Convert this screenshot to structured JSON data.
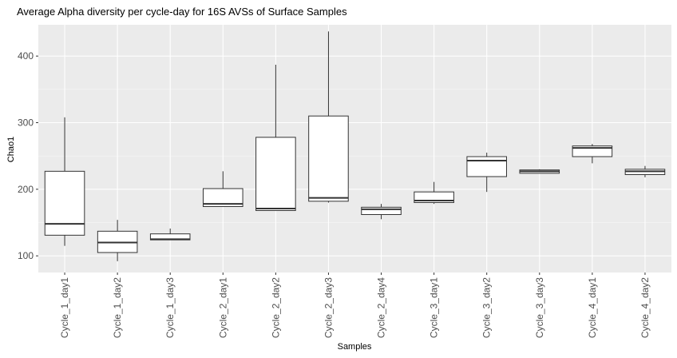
{
  "chart_data": {
    "type": "boxplot",
    "title": "Average Alpha diversity per cycle-day for 16S AVSs of Surface Samples",
    "xlabel": "Samples",
    "ylabel": "Chao1",
    "ylim": [
      75,
      447
    ],
    "yticks": [
      100,
      200,
      300,
      400
    ],
    "grid": true,
    "legend": "none",
    "colors": {
      "panel": "#EBEBEB",
      "grid_major": "#FFFFFF",
      "box_fill": "#FFFFFF",
      "box_stroke": "#333333",
      "tick_text": "#4D4D4D"
    },
    "categories": [
      "Cycle_1_day1",
      "Cycle_1_day2",
      "Cycle_1_day3",
      "Cycle_2_day1",
      "Cycle_2_day2",
      "Cycle_2_day3",
      "Cycle_2_day4",
      "Cycle_3_day1",
      "Cycle_3_day2",
      "Cycle_3_day3",
      "Cycle_4_day1",
      "Cycle_4_day2"
    ],
    "boxes": [
      {
        "min": 115,
        "q1": 131,
        "median": 148,
        "q3": 227,
        "max": 308
      },
      {
        "min": 92,
        "q1": 105,
        "median": 120,
        "q3": 137,
        "max": 154
      },
      {
        "min": 124,
        "q1": 124,
        "median": 125,
        "q3": 133,
        "max": 141
      },
      {
        "min": 174,
        "q1": 174,
        "median": 178,
        "q3": 201,
        "max": 227
      },
      {
        "min": 168,
        "q1": 168,
        "median": 171,
        "q3": 278,
        "max": 387
      },
      {
        "min": 180,
        "q1": 182,
        "median": 187,
        "q3": 310,
        "max": 437
      },
      {
        "min": 155,
        "q1": 162,
        "median": 170,
        "q3": 173,
        "max": 178
      },
      {
        "min": 178,
        "q1": 180,
        "median": 183,
        "q3": 196,
        "max": 211
      },
      {
        "min": 196,
        "q1": 219,
        "median": 243,
        "q3": 249,
        "max": 255
      },
      {
        "min": 224,
        "q1": 224,
        "median": 227,
        "q3": 229,
        "max": 230
      },
      {
        "min": 239,
        "q1": 249,
        "median": 262,
        "q3": 265,
        "max": 268
      },
      {
        "min": 218,
        "q1": 222,
        "median": 227,
        "q3": 230,
        "max": 235
      }
    ]
  }
}
